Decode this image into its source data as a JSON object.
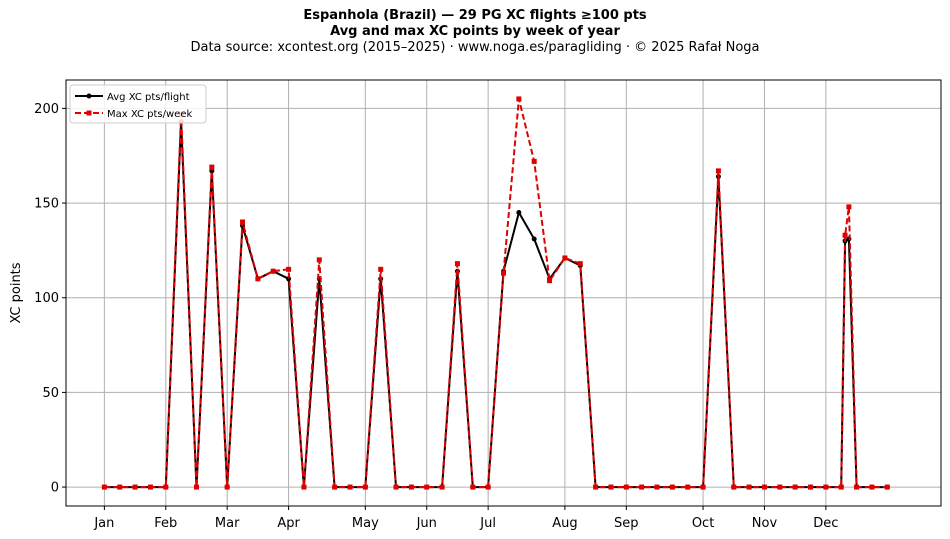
{
  "header": {
    "title_line1": "Espanhola (Brazil)  —  29 PG XC flights ≥100 pts",
    "title_line2": "Avg and max XC points by week of year",
    "subtitle": "Data source: xcontest.org (2015–2025)  ·  www.noga.es/paragliding  ·  © 2025 Rafał Noga"
  },
  "chart_data": {
    "type": "line",
    "title": "Espanhola (Brazil)  —  29 PG XC flights ≥100 pts\nAvg and max XC points by week of year",
    "subtitle": "Data source: xcontest.org (2015–2025)  ·  www.noga.es/paragliding  ·  © 2025 Rafał Noga",
    "xlabel": "",
    "ylabel": "XC points",
    "xlim": [
      -2.5,
      54.5
    ],
    "ylim": [
      -10,
      215
    ],
    "yticks": [
      0,
      50,
      100,
      150,
      200
    ],
    "grid": true,
    "legend_position": "top-left",
    "xticks": [
      {
        "label": "Jan",
        "week": 0
      },
      {
        "label": "Feb",
        "week": 4
      },
      {
        "label": "Mar",
        "week": 8
      },
      {
        "label": "Apr",
        "week": 12
      },
      {
        "label": "May",
        "week": 17
      },
      {
        "label": "Jun",
        "week": 21
      },
      {
        "label": "Jul",
        "week": 25
      },
      {
        "label": "Aug",
        "week": 30
      },
      {
        "label": "Sep",
        "week": 34
      },
      {
        "label": "Oct",
        "week": 39
      },
      {
        "label": "Nov",
        "week": 43
      },
      {
        "label": "Dec",
        "week": 47
      }
    ],
    "series": [
      {
        "name": "Avg XC pts/flight",
        "color": "#000000",
        "style": "solid",
        "marker": "circle",
        "points": [
          [
            0,
            0
          ],
          [
            1,
            0
          ],
          [
            2,
            0
          ],
          [
            3,
            0
          ],
          [
            4,
            0
          ],
          [
            5,
            193
          ],
          [
            6,
            0
          ],
          [
            7,
            167
          ],
          [
            8,
            0
          ],
          [
            9,
            138
          ],
          [
            10,
            110
          ],
          [
            11,
            114
          ],
          [
            12,
            110
          ],
          [
            13,
            0
          ],
          [
            14,
            110
          ],
          [
            15,
            0
          ],
          [
            16,
            0
          ],
          [
            17,
            0
          ],
          [
            18,
            110
          ],
          [
            19,
            0
          ],
          [
            20,
            0
          ],
          [
            21,
            0
          ],
          [
            22,
            0
          ],
          [
            23,
            114
          ],
          [
            24,
            0
          ],
          [
            25,
            0
          ],
          [
            26,
            114
          ],
          [
            27,
            145
          ],
          [
            28,
            131
          ],
          [
            29,
            110
          ],
          [
            30,
            121
          ],
          [
            31,
            117
          ],
          [
            32,
            0
          ],
          [
            33,
            0
          ],
          [
            34,
            0
          ],
          [
            35,
            0
          ],
          [
            36,
            0
          ],
          [
            37,
            0
          ],
          [
            38,
            0
          ],
          [
            39,
            0
          ],
          [
            40,
            164
          ],
          [
            41,
            0
          ],
          [
            42,
            0
          ],
          [
            43,
            0
          ],
          [
            44,
            0
          ],
          [
            45,
            0
          ],
          [
            46,
            0
          ],
          [
            47,
            0
          ],
          [
            48,
            0
          ],
          [
            48.25,
            130
          ],
          [
            48.5,
            131
          ],
          [
            49,
            0
          ],
          [
            50,
            0
          ],
          [
            51,
            0
          ]
        ]
      },
      {
        "name": "Max XC pts/week",
        "color": "#e00000",
        "style": "dashed",
        "marker": "square",
        "points": [
          [
            0,
            0
          ],
          [
            1,
            0
          ],
          [
            2,
            0
          ],
          [
            3,
            0
          ],
          [
            4,
            0
          ],
          [
            5,
            197
          ],
          [
            6,
            0
          ],
          [
            7,
            169
          ],
          [
            8,
            0
          ],
          [
            9,
            140
          ],
          [
            10,
            110
          ],
          [
            11,
            114
          ],
          [
            12,
            115
          ],
          [
            13,
            0
          ],
          [
            14,
            120
          ],
          [
            15,
            0
          ],
          [
            16,
            0
          ],
          [
            17,
            0
          ],
          [
            18,
            115
          ],
          [
            19,
            0
          ],
          [
            20,
            0
          ],
          [
            21,
            0
          ],
          [
            22,
            0
          ],
          [
            23,
            118
          ],
          [
            24,
            0
          ],
          [
            25,
            0
          ],
          [
            26,
            113
          ],
          [
            27,
            205
          ],
          [
            28,
            172
          ],
          [
            29,
            109
          ],
          [
            30,
            121
          ],
          [
            31,
            118
          ],
          [
            32,
            0
          ],
          [
            33,
            0
          ],
          [
            34,
            0
          ],
          [
            35,
            0
          ],
          [
            36,
            0
          ],
          [
            37,
            0
          ],
          [
            38,
            0
          ],
          [
            39,
            0
          ],
          [
            40,
            167
          ],
          [
            41,
            0
          ],
          [
            42,
            0
          ],
          [
            43,
            0
          ],
          [
            44,
            0
          ],
          [
            45,
            0
          ],
          [
            46,
            0
          ],
          [
            47,
            0
          ],
          [
            48,
            0
          ],
          [
            48.25,
            133
          ],
          [
            48.5,
            148
          ],
          [
            49,
            0
          ],
          [
            50,
            0
          ],
          [
            51,
            0
          ]
        ]
      }
    ]
  }
}
